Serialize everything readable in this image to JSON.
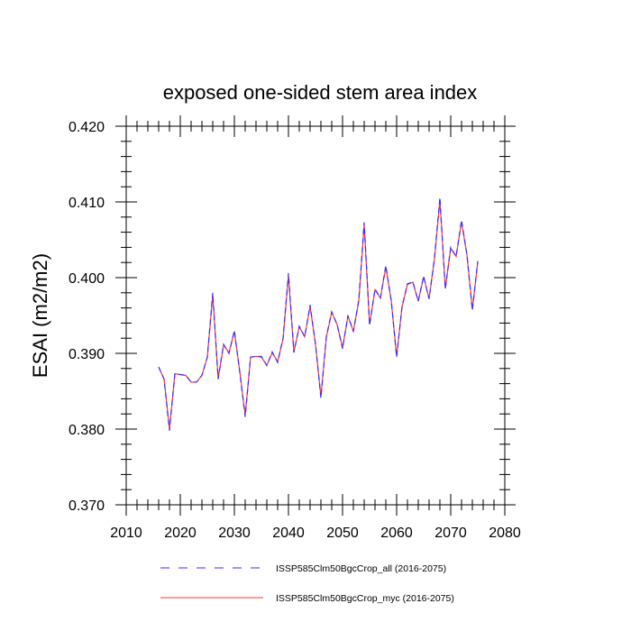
{
  "chart_data": {
    "type": "line",
    "title": "exposed one-sided stem area index",
    "xlabel": "",
    "ylabel": "ESAI  (m2/m2)",
    "xlim": [
      2010,
      2080
    ],
    "ylim": [
      0.37,
      0.42
    ],
    "x_ticks": [
      "2010",
      "2020",
      "2030",
      "2040",
      "2050",
      "2060",
      "2070",
      "2080"
    ],
    "y_ticks": [
      "0.370",
      "0.380",
      "0.390",
      "0.400",
      "0.410",
      "0.420"
    ],
    "grid": false,
    "legend_position": "bottom",
    "x": [
      2016,
      2017,
      2018,
      2019,
      2020,
      2021,
      2022,
      2023,
      2024,
      2025,
      2026,
      2027,
      2028,
      2029,
      2030,
      2031,
      2032,
      2033,
      2034,
      2035,
      2036,
      2037,
      2038,
      2039,
      2040,
      2041,
      2042,
      2043,
      2044,
      2045,
      2046,
      2047,
      2048,
      2049,
      2050,
      2051,
      2052,
      2053,
      2054,
      2055,
      2056,
      2057,
      2058,
      2059,
      2060,
      2061,
      2062,
      2063,
      2064,
      2065,
      2066,
      2067,
      2068,
      2069,
      2070,
      2071,
      2072,
      2073,
      2074,
      2075
    ],
    "series": [
      {
        "name": "ISSP585Clm50BgcCrop_all (2016-2075)",
        "color": "#3333ff",
        "style": "dashed",
        "values": [
          0.3882,
          0.3866,
          0.3798,
          0.3873,
          0.3872,
          0.3871,
          0.3862,
          0.3862,
          0.3871,
          0.3895,
          0.398,
          0.3866,
          0.3912,
          0.39,
          0.393,
          0.3875,
          0.3816,
          0.3895,
          0.3896,
          0.3896,
          0.3884,
          0.3902,
          0.3888,
          0.392,
          0.4006,
          0.3901,
          0.3936,
          0.3922,
          0.3964,
          0.3912,
          0.3841,
          0.3922,
          0.3955,
          0.3938,
          0.3906,
          0.395,
          0.3929,
          0.397,
          0.4073,
          0.3937,
          0.3985,
          0.3973,
          0.4016,
          0.397,
          0.3895,
          0.3962,
          0.3992,
          0.3994,
          0.3969,
          0.4002,
          0.3972,
          0.4026,
          0.4106,
          0.3985,
          0.404,
          0.4028,
          0.4076,
          0.403,
          0.3957,
          0.4022
        ]
      },
      {
        "name": "ISSP585Clm50BgcCrop_myc (2016-2075)",
        "color": "#ff3333",
        "style": "solid",
        "values": [
          0.3882,
          0.3866,
          0.38,
          0.3873,
          0.3872,
          0.3871,
          0.3862,
          0.3862,
          0.3871,
          0.3895,
          0.3977,
          0.3867,
          0.3911,
          0.3901,
          0.3929,
          0.3876,
          0.3818,
          0.3895,
          0.3896,
          0.3895,
          0.3884,
          0.3901,
          0.3889,
          0.3919,
          0.4003,
          0.3902,
          0.3935,
          0.3922,
          0.3962,
          0.3912,
          0.3843,
          0.3921,
          0.3954,
          0.3938,
          0.3907,
          0.3949,
          0.3929,
          0.3969,
          0.407,
          0.3938,
          0.3984,
          0.3973,
          0.4014,
          0.397,
          0.3896,
          0.3961,
          0.3991,
          0.3994,
          0.3969,
          0.4001,
          0.3972,
          0.4025,
          0.4102,
          0.3986,
          0.4039,
          0.4028,
          0.4074,
          0.403,
          0.3958,
          0.4021
        ]
      }
    ]
  }
}
